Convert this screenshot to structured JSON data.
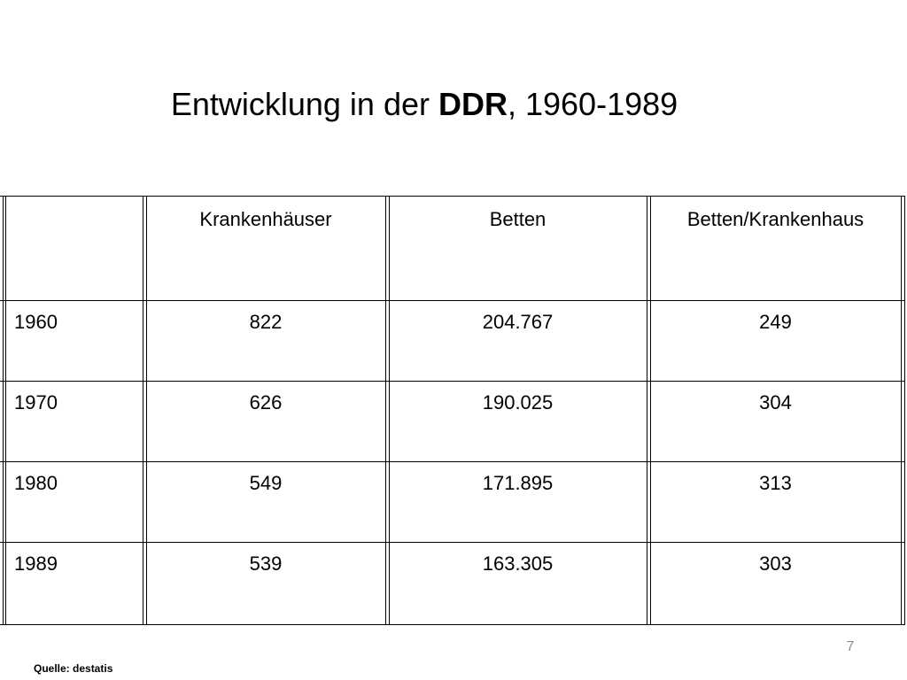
{
  "title": {
    "prefix": "Entwicklung in der ",
    "bold": "DDR",
    "suffix": ", 1960-1989"
  },
  "table": {
    "headers": [
      "",
      "Krankenhäuser",
      "Betten",
      "Betten/Krankenhaus"
    ],
    "rows": [
      [
        "1960",
        "822",
        "204.767",
        "249"
      ],
      [
        "1970",
        "626",
        "190.025",
        "304"
      ],
      [
        "1980",
        "549",
        "171.895",
        "313"
      ],
      [
        "1989",
        "539",
        "163.305",
        "303"
      ]
    ]
  },
  "footer": {
    "page_number": "7",
    "source": "Quelle: destatis"
  }
}
